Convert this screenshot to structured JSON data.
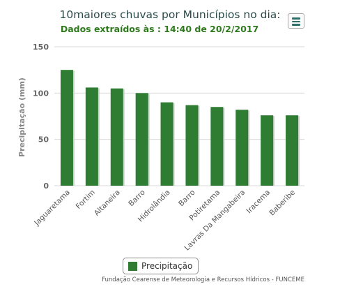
{
  "chart": {
    "title": "10maiores chuvas por Municípios no dia:",
    "subtitle": "Dados extraídos às : 14:40 de 20/2/2017",
    "menu_icon": "hamburger-menu-icon",
    "credits": "Fundação Cearense de Meteorologia e Recursos Hídricos - FUNCEME"
  },
  "colors": {
    "bar": "#2e7d32",
    "bar_shadow": "#d0d0d0",
    "grid": "#d8d8d8",
    "axis_text": "#666666"
  },
  "chart_data": {
    "type": "bar",
    "title": "10maiores chuvas por Municípios no dia:",
    "subtitle": "Dados extraídos às : 14:40 de 20/2/2017",
    "xlabel": "",
    "ylabel": "Precipitação (mm)",
    "categories": [
      "Jaguaretama",
      "Fortim",
      "Altaneira",
      "Barro",
      "Hidrolândia",
      "Barro",
      "Potiretama",
      "Lavras Da Mangabeira",
      "Iracema",
      "Baberibe"
    ],
    "series": [
      {
        "name": "Precipitação",
        "values": [
          125,
          106,
          105,
          100,
          90,
          87,
          85,
          82,
          76,
          76
        ]
      }
    ],
    "ylim": [
      0,
      150
    ],
    "yticks": [
      0,
      50,
      100,
      150
    ],
    "grid": true,
    "legend": "bottom-center"
  }
}
